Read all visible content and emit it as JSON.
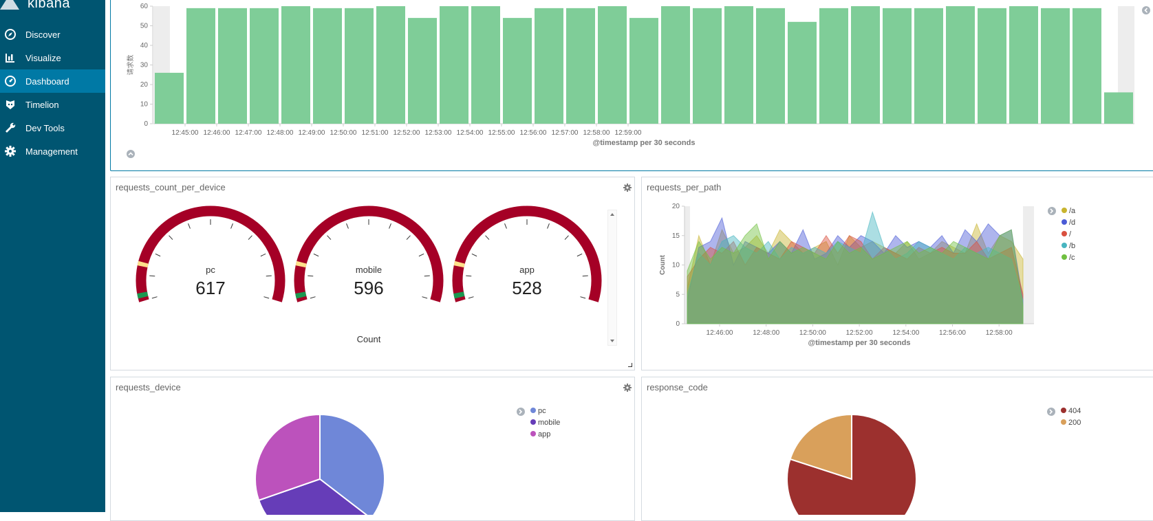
{
  "brand": {
    "name": "kibana"
  },
  "nav": [
    {
      "label": "Discover",
      "icon": "compass-icon"
    },
    {
      "label": "Visualize",
      "icon": "bar-chart-icon"
    },
    {
      "label": "Dashboard",
      "icon": "dashboard-icon",
      "active": true
    },
    {
      "label": "Timelion",
      "icon": "timelion-icon"
    },
    {
      "label": "Dev Tools",
      "icon": "wrench-icon"
    },
    {
      "label": "Management",
      "icon": "gear-icon"
    }
  ],
  "colors": {
    "sidebar": "#005571",
    "active": "#0079a5",
    "bar": "#7fcd98",
    "gauge": "#a50026"
  },
  "chart_data": [
    {
      "type": "bar",
      "ylabel": "请求数",
      "xlabel": "@timestamp per 30 seconds",
      "yticks": [
        0,
        10,
        20,
        30,
        40,
        50,
        60
      ],
      "ylim": [
        0,
        60
      ],
      "xticks": [
        "12:45:00",
        "12:46:00",
        "12:47:00",
        "12:48:00",
        "12:49:00",
        "12:50:00",
        "12:51:00",
        "12:52:00",
        "12:53:00",
        "12:54:00",
        "12:55:00",
        "12:56:00",
        "12:57:00",
        "12:58:00",
        "12:59:00"
      ],
      "values": [
        26,
        59,
        59,
        59,
        60,
        59,
        59,
        60,
        54,
        60,
        60,
        54,
        59,
        59,
        60,
        54,
        60,
        59,
        60,
        59,
        52,
        59,
        60,
        59,
        59,
        60,
        59,
        60,
        59,
        59,
        16
      ]
    },
    {
      "type": "gauge",
      "title": "requests_count_per_device",
      "label": "Count",
      "gauges": [
        {
          "name": "pc",
          "value": 617
        },
        {
          "name": "mobile",
          "value": 596
        },
        {
          "name": "app",
          "value": 528
        }
      ]
    },
    {
      "type": "area",
      "title": "requests_per_path",
      "ylabel": "Count",
      "xlabel": "@timestamp per 30 seconds",
      "ylim": [
        0,
        20
      ],
      "yticks": [
        0,
        5,
        10,
        15,
        20
      ],
      "xticks": [
        "12:46:00",
        "12:48:00",
        "12:50:00",
        "12:52:00",
        "12:54:00",
        "12:56:00",
        "12:58:00"
      ],
      "series": [
        {
          "name": "/a",
          "color": "#c8b42e",
          "values": [
            6,
            15,
            10,
            16,
            12,
            13,
            15,
            12,
            16,
            14,
            12,
            13,
            14,
            10,
            15,
            13,
            14,
            13,
            12,
            14,
            11,
            12,
            14,
            13,
            12,
            17,
            12,
            15,
            14,
            11
          ]
        },
        {
          "name": "/d",
          "color": "#4b5bd6",
          "values": [
            4,
            13,
            14,
            18,
            10,
            14,
            13,
            12,
            14,
            12,
            16,
            11,
            12,
            15,
            13,
            15,
            14,
            12,
            15,
            13,
            14,
            13,
            15,
            12,
            16,
            14,
            17,
            15,
            16,
            4
          ]
        },
        {
          "name": "/",
          "color": "#d9503f",
          "values": [
            8,
            11,
            13,
            12,
            14,
            10,
            13,
            12,
            11,
            14,
            13,
            12,
            15,
            12,
            15,
            14,
            11,
            13,
            12,
            11,
            13,
            12,
            13,
            12,
            12,
            14,
            11,
            12,
            13,
            5
          ]
        },
        {
          "name": "/b",
          "color": "#48b5c0",
          "values": [
            5,
            12,
            10,
            14,
            15,
            13,
            12,
            14,
            11,
            13,
            12,
            13,
            12,
            14,
            13,
            12,
            19,
            13,
            11,
            12,
            14,
            13,
            12,
            11,
            13,
            12,
            13,
            12,
            11,
            4
          ]
        },
        {
          "name": "/c",
          "color": "#70c040",
          "values": [
            9,
            14,
            11,
            13,
            12,
            15,
            17,
            11,
            14,
            12,
            13,
            12,
            11,
            14,
            12,
            13,
            11,
            12,
            13,
            14,
            12,
            13,
            12,
            14,
            13,
            12,
            11,
            15,
            16,
            3
          ]
        }
      ]
    },
    {
      "type": "pie",
      "title": "requests_device",
      "slices": [
        {
          "name": "pc",
          "value": 617,
          "color": "#6f87d8"
        },
        {
          "name": "mobile",
          "value": 596,
          "color": "#663db8"
        },
        {
          "name": "app",
          "value": 528,
          "color": "#bc52bc"
        }
      ]
    },
    {
      "type": "pie",
      "title": "response_code",
      "slices": [
        {
          "name": "404",
          "value": 80,
          "color": "#9c302e"
        },
        {
          "name": "200",
          "value": 20,
          "color": "#d9a05b"
        }
      ]
    }
  ]
}
